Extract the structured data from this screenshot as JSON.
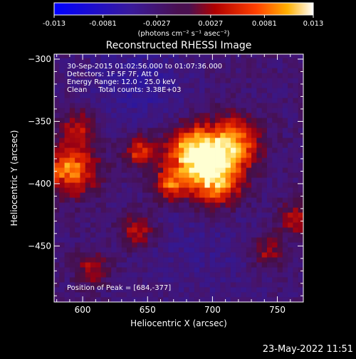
{
  "colorbar": {
    "tick_labels": [
      "-0.013",
      "-0.0081",
      "-0.0027",
      "0.0027",
      "0.0081",
      "0.013"
    ],
    "ticks": [
      -0.013,
      -0.0081,
      -0.0027,
      0.0027,
      0.0081,
      0.013
    ],
    "range": [
      -0.013,
      0.013
    ],
    "unit_label": "(photons cm⁻² s⁻¹ asec⁻²)"
  },
  "chart_data": {
    "type": "heatmap",
    "title": "Reconstructed RHESSI Image",
    "xlabel": "Heliocentric X (arcsec)",
    "ylabel": "Heliocentric Y (arcsec)",
    "xlim": [
      578,
      770
    ],
    "ylim": [
      -495,
      -296
    ],
    "x_ticks": [
      600,
      650,
      700,
      750
    ],
    "x_tick_labels": [
      "600",
      "650",
      "700",
      "750"
    ],
    "y_ticks": [
      -300,
      -350,
      -400,
      -450
    ],
    "y_tick_labels": [
      "−300",
      "−350",
      "−400",
      "−450"
    ],
    "colorscale": "rhessi-blue-purple-red-yellow-white",
    "sources": [
      {
        "x": 684,
        "y": -377,
        "peak": 1.0
      },
      {
        "x": 714,
        "y": -370,
        "peak": 0.75
      },
      {
        "x": 700,
        "y": -400,
        "peak": 0.8
      },
      {
        "x": 665,
        "y": -403,
        "peak": 0.55
      },
      {
        "x": 589,
        "y": -390,
        "peak": 0.7
      },
      {
        "x": 642,
        "y": -375,
        "peak": 0.5
      },
      {
        "x": 595,
        "y": -355,
        "peak": 0.35
      },
      {
        "x": 640,
        "y": -440,
        "peak": 0.4
      },
      {
        "x": 605,
        "y": -470,
        "peak": 0.35
      },
      {
        "x": 740,
        "y": -455,
        "peak": 0.35
      },
      {
        "x": 762,
        "y": -430,
        "peak": 0.4
      }
    ],
    "annotations": {
      "time": "30-Sep-2015 01:02:56.000 to 01:07:36.000",
      "detectors": "Detectors: 1F 5F 7F, Att 0",
      "energy": "Energy Range: 12.0 - 25.0 keV",
      "clean": "Clean     Total counts: 3.38E+03",
      "peak": "Position of Peak = [684,-377]"
    }
  },
  "footer_date": "23-May-2022 11:51"
}
